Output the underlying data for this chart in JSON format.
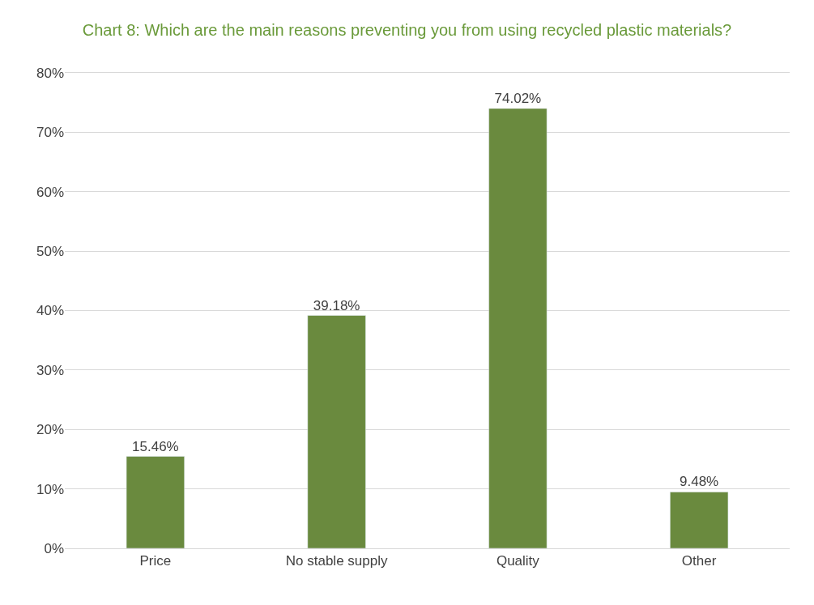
{
  "chart_data": {
    "type": "bar",
    "title": "Chart 8: Which are the main reasons preventing you from using recycled plastic materials?",
    "categories": [
      "Price",
      "No stable supply",
      "Quality",
      "Other"
    ],
    "values": [
      15.46,
      39.18,
      74.02,
      9.48
    ],
    "value_labels": [
      "15.46%",
      "39.18%",
      "74.02%",
      "9.48%"
    ],
    "color": "#6a8a3e",
    "ylim": [
      0,
      80
    ],
    "yticks": [
      {
        "value": 0,
        "label": "0%"
      },
      {
        "value": 10,
        "label": "10%"
      },
      {
        "value": 20,
        "label": "20%"
      },
      {
        "value": 30,
        "label": "30%"
      },
      {
        "value": 40,
        "label": "40%"
      },
      {
        "value": 50,
        "label": "50%"
      },
      {
        "value": 60,
        "label": "60%"
      },
      {
        "value": 70,
        "label": "70%"
      },
      {
        "value": 80,
        "label": "80%"
      }
    ],
    "grid": "y"
  }
}
